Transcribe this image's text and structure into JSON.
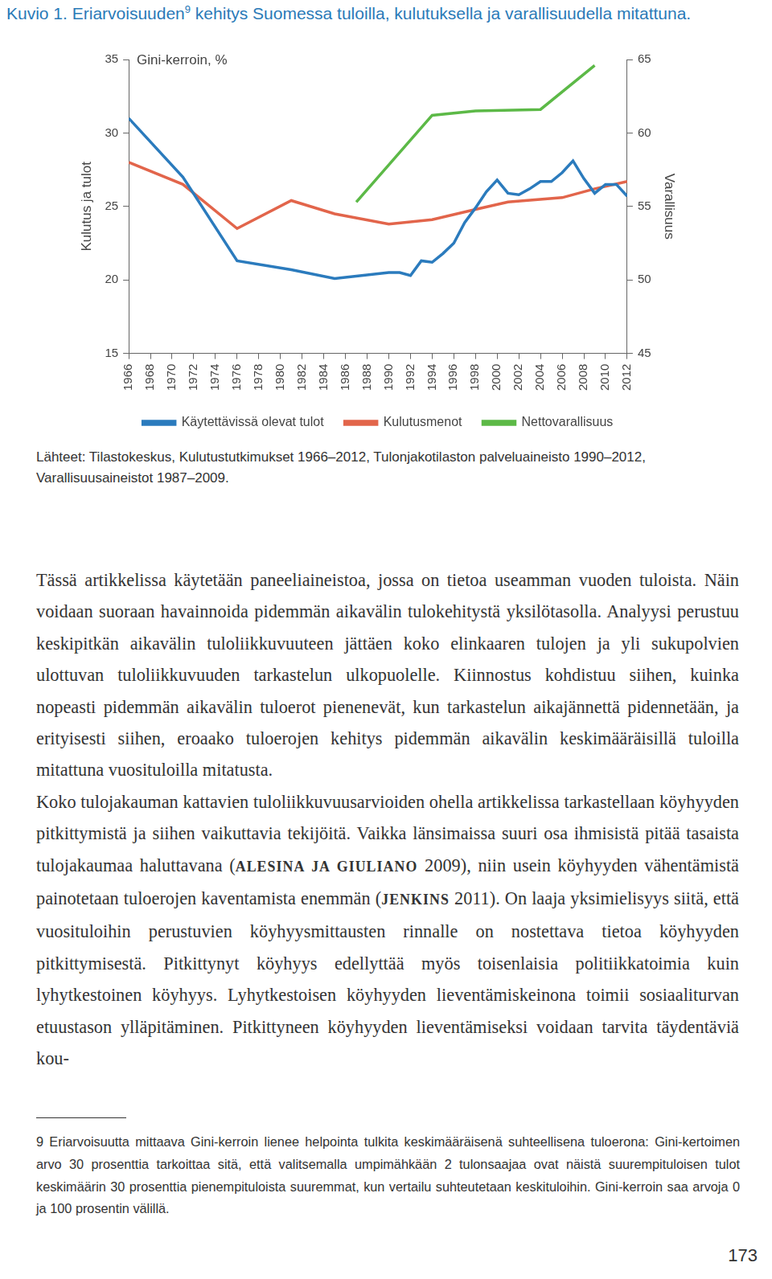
{
  "chart_data": {
    "type": "line",
    "title": "Gini-kerroin, %",
    "y_label": "Kulutus ja tulot",
    "y2_label": "Varallisuus",
    "xlim": [
      1966,
      2012
    ],
    "xticks": [
      1966,
      1968,
      1970,
      1972,
      1974,
      1976,
      1978,
      1980,
      1982,
      1984,
      1986,
      1988,
      1990,
      1992,
      1994,
      1996,
      1998,
      2000,
      2002,
      2004,
      2006,
      2008,
      2010,
      2012
    ],
    "ylim": [
      15,
      35
    ],
    "yticks": [
      15,
      20,
      25,
      30,
      35
    ],
    "y2lim": [
      45,
      65
    ],
    "y2ticks": [
      45,
      50,
      55,
      60,
      65
    ],
    "grid": false,
    "legend": "bottom",
    "series": [
      {
        "name": "Käytettävissä olevat tulot",
        "color": "#2b7bbd",
        "x": [
          1966,
          1971,
          1976,
          1981,
          1985,
          1990,
          1991,
          1992,
          1993,
          1994,
          1995,
          1996,
          1997,
          1998,
          1999,
          2000,
          2001,
          2002,
          2003,
          2004,
          2005,
          2006,
          2007,
          2008,
          2009,
          2010,
          2011,
          2012
        ],
        "values": [
          31.0,
          27.0,
          21.3,
          20.7,
          20.1,
          20.5,
          20.5,
          20.3,
          21.3,
          21.2,
          21.8,
          22.5,
          23.9,
          24.9,
          26.0,
          26.8,
          25.9,
          25.8,
          26.2,
          26.7,
          26.7,
          27.3,
          28.1,
          26.9,
          25.9,
          26.5,
          26.5,
          25.7
        ]
      },
      {
        "name": "Kulutusmenot",
        "color": "#e2654b",
        "x": [
          1966,
          1971,
          1976,
          1981,
          1985,
          1990,
          1994,
          1998,
          2001,
          2006,
          2009,
          2012
        ],
        "values": [
          28.0,
          26.5,
          23.5,
          25.4,
          24.5,
          23.8,
          24.1,
          24.8,
          25.3,
          25.6,
          26.2,
          26.7
        ]
      },
      {
        "name": "Nettovarallisuus",
        "color": "#5cb947",
        "axis": "y2",
        "x": [
          1987,
          1994,
          1998,
          2004,
          2009
        ],
        "values": [
          55.3,
          61.2,
          61.5,
          61.6,
          64.6
        ]
      }
    ]
  },
  "page": {
    "caption": [
      "Kuvio 1. Eriarvoisuuden",
      {
        "sup": "9"
      },
      " kehitys Suomessa tuloilla, kulutuksella ja varallisuudella mitattuna."
    ],
    "source": "Lähteet: Tilastokeskus, Kulutustutkimukset 1966–2012, Tulonjakotilaston palveluaineisto 1990–2012, Varallisuusaineistot 1987–2009.",
    "paragraphs": [
      [
        "Tässä artikkelissa käytetään paneeliaineistoa, jossa on tietoa useamman vuoden tuloista. Näin voidaan suoraan havainnoida pidemmän aikavälin tulokehitystä yksilötasolla. Analyysi perustuu keskipitkän aikavälin tuloliikkuvuuteen jättäen koko elinkaaren tulojen ja yli sukupolvien ulottuvan tuloliikkuvuuden tarkastelun ulkopuolelle. Kiinnostus kohdistuu siihen, kuinka nopeasti pidemmän aikavälin tuloerot pienenevät, kun tarkastelun aikajännettä pidennetään, ja erityisesti siihen, eroaako tuloerojen kehitys pidemmän aikavälin keskimääräisillä tuloilla mitattuna vuosituloilla mitatusta."
      ],
      [
        "Koko tulojakauman kattavien tuloliikkuvuusarvioiden ohella artikkelissa tarkastellaan köyhyyden pitkittymistä ja siihen vaikuttavia tekijöitä. Vaikka länsimaissa suuri osa ihmisistä pitää tasaista tulojakaumaa haluttavana (",
        {
          "cite": "ALESINA JA GIULIANO"
        },
        " 2009), niin usein köyhyyden vähentämistä painotetaan tuloerojen kaventamista enemmän (",
        {
          "cite": "JENKINS"
        },
        " 2011). On laaja yksimielisyys siitä, että vuosituloihin perustuvien köyhyysmittausten rinnalle on nostettava tietoa köyhyyden pitkittymisestä. Pitkittynyt köyhyys edellyttää myös toisenlaisia politiikkatoimia kuin lyhytkestoinen köyhyys. Lyhytkestoisen köyhyyden lieventämiskeinona toimii sosiaaliturvan etuustason ylläpitäminen. Pitkittyneen köyhyyden lieventämiseksi voidaan tarvita täydentäviä kou-"
      ]
    ],
    "footnote": {
      "number": "9",
      "text": "Eriarvoisuutta mittaava Gini-kerroin lienee helpointa tulkita keskimääräisenä suhteellisena tuloerona: Gini-kertoimen arvo 30 prosenttia tarkoittaa sitä, että valitsemalla umpimähkään 2 tulonsaajaa ovat näistä suurempituloisen tulot keskimäärin 30 prosenttia pienempituloista suuremmat, kun vertailu suhteutetaan keskituloihin. Gini-kerroin saa arvoja 0 ja 100 prosentin välillä."
    },
    "page_number": "173"
  }
}
